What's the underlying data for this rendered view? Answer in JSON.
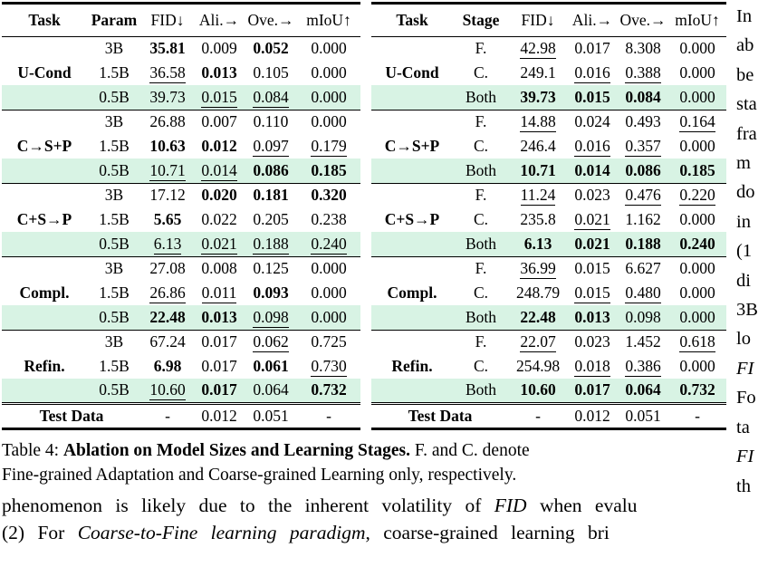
{
  "colors": {
    "highlight": "#d8f3e4",
    "text": "#000000",
    "rule": "#000000"
  },
  "caption": {
    "line1_prefix": "Table 4: ",
    "line1_bold": "Ablation on Model Sizes and Learning Stages.",
    "line1_rest": " F. and C. denote",
    "line2": "Fine-grained Adaptation and Coarse-grained Learning only, respectively."
  },
  "body_text": {
    "line1": {
      "pre": "phenomenon is likely due to the inherent volatility of ",
      "em": "FID",
      "post": " when evalu"
    },
    "line2": {
      "pre": "(2) For ",
      "em": "Coarse-to-Fine learning paradigm",
      "post": ", coarse-grained learning bri"
    }
  },
  "side_text": {
    "lines": [
      {
        "t": "In"
      },
      {
        "t": "ab"
      },
      {
        "t": "be"
      },
      {
        "t": "sta"
      },
      {
        "t": "fra"
      },
      {
        "t": "m"
      },
      {
        "t": "do"
      },
      {
        "t": "in"
      },
      {
        "t": "(1"
      },
      {
        "t": "di"
      },
      {
        "t": "3B"
      },
      {
        "t": "lo"
      },
      {
        "t": "FI",
        "italic": true
      },
      {
        "t": "Fo"
      },
      {
        "t": "ta"
      },
      {
        "t": "FI",
        "italic": true
      },
      {
        "t": "th"
      }
    ]
  },
  "tables": [
    {
      "name": "ablation-model-sizes",
      "headers": [
        {
          "t": "Task",
          "b": true
        },
        {
          "t": "Param",
          "b": true
        },
        {
          "t": "FID↓"
        },
        {
          "t": "Ali.→"
        },
        {
          "t": "Ove.→"
        },
        {
          "t": "mIoU↑"
        }
      ],
      "groups": [
        {
          "task": "U-Cond",
          "rows": [
            {
              "label": "3B",
              "hl": false,
              "cells": [
                {
                  "v": "35.81",
                  "f": "b"
                },
                {
                  "v": "0.009",
                  "f": ""
                },
                {
                  "v": "0.052",
                  "f": "b"
                },
                {
                  "v": "0.000",
                  "f": ""
                }
              ]
            },
            {
              "label": "1.5B",
              "hl": false,
              "cells": [
                {
                  "v": "36.58",
                  "f": "u"
                },
                {
                  "v": "0.013",
                  "f": "b"
                },
                {
                  "v": "0.105",
                  "f": ""
                },
                {
                  "v": "0.000",
                  "f": ""
                }
              ]
            },
            {
              "label": "0.5B",
              "hl": true,
              "cells": [
                {
                  "v": "39.73",
                  "f": ""
                },
                {
                  "v": "0.015",
                  "f": "u"
                },
                {
                  "v": "0.084",
                  "f": "u"
                },
                {
                  "v": "0.000",
                  "f": ""
                }
              ]
            }
          ]
        },
        {
          "task": "C→S+P",
          "rows": [
            {
              "label": "3B",
              "hl": false,
              "cells": [
                {
                  "v": "26.88",
                  "f": ""
                },
                {
                  "v": "0.007",
                  "f": ""
                },
                {
                  "v": "0.110",
                  "f": ""
                },
                {
                  "v": "0.000",
                  "f": ""
                }
              ]
            },
            {
              "label": "1.5B",
              "hl": false,
              "cells": [
                {
                  "v": "10.63",
                  "f": "b"
                },
                {
                  "v": "0.012",
                  "f": "b"
                },
                {
                  "v": "0.097",
                  "f": "u"
                },
                {
                  "v": "0.179",
                  "f": "u"
                }
              ]
            },
            {
              "label": "0.5B",
              "hl": true,
              "cells": [
                {
                  "v": "10.71",
                  "f": "u"
                },
                {
                  "v": "0.014",
                  "f": "u"
                },
                {
                  "v": "0.086",
                  "f": "b"
                },
                {
                  "v": "0.185",
                  "f": "b"
                }
              ]
            }
          ]
        },
        {
          "task": "C+S→P",
          "rows": [
            {
              "label": "3B",
              "hl": false,
              "cells": [
                {
                  "v": "17.12",
                  "f": ""
                },
                {
                  "v": "0.020",
                  "f": "b"
                },
                {
                  "v": "0.181",
                  "f": "b"
                },
                {
                  "v": "0.320",
                  "f": "b"
                }
              ]
            },
            {
              "label": "1.5B",
              "hl": false,
              "cells": [
                {
                  "v": "5.65",
                  "f": "b"
                },
                {
                  "v": "0.022",
                  "f": ""
                },
                {
                  "v": "0.205",
                  "f": ""
                },
                {
                  "v": "0.238",
                  "f": ""
                }
              ]
            },
            {
              "label": "0.5B",
              "hl": true,
              "cells": [
                {
                  "v": "6.13",
                  "f": "u"
                },
                {
                  "v": "0.021",
                  "f": "u"
                },
                {
                  "v": "0.188",
                  "f": "u"
                },
                {
                  "v": "0.240",
                  "f": "u"
                }
              ]
            }
          ]
        },
        {
          "task": "Compl.",
          "rows": [
            {
              "label": "3B",
              "hl": false,
              "cells": [
                {
                  "v": "27.08",
                  "f": ""
                },
                {
                  "v": "0.008",
                  "f": ""
                },
                {
                  "v": "0.125",
                  "f": ""
                },
                {
                  "v": "0.000",
                  "f": ""
                }
              ]
            },
            {
              "label": "1.5B",
              "hl": false,
              "cells": [
                {
                  "v": "26.86",
                  "f": "u"
                },
                {
                  "v": "0.011",
                  "f": "u"
                },
                {
                  "v": "0.093",
                  "f": "b"
                },
                {
                  "v": "0.000",
                  "f": ""
                }
              ]
            },
            {
              "label": "0.5B",
              "hl": true,
              "cells": [
                {
                  "v": "22.48",
                  "f": "b"
                },
                {
                  "v": "0.013",
                  "f": "b"
                },
                {
                  "v": "0.098",
                  "f": "u"
                },
                {
                  "v": "0.000",
                  "f": ""
                }
              ]
            }
          ]
        },
        {
          "task": "Refin.",
          "rows": [
            {
              "label": "3B",
              "hl": false,
              "cells": [
                {
                  "v": "67.24",
                  "f": ""
                },
                {
                  "v": "0.017",
                  "f": ""
                },
                {
                  "v": "0.062",
                  "f": "u"
                },
                {
                  "v": "0.725",
                  "f": ""
                }
              ]
            },
            {
              "label": "1.5B",
              "hl": false,
              "cells": [
                {
                  "v": "6.98",
                  "f": "b"
                },
                {
                  "v": "0.017",
                  "f": ""
                },
                {
                  "v": "0.061",
                  "f": "b"
                },
                {
                  "v": "0.730",
                  "f": "u"
                }
              ]
            },
            {
              "label": "0.5B",
              "hl": true,
              "cells": [
                {
                  "v": "10.60",
                  "f": "u"
                },
                {
                  "v": "0.017",
                  "f": "b"
                },
                {
                  "v": "0.064",
                  "f": ""
                },
                {
                  "v": "0.732",
                  "f": "b"
                }
              ]
            }
          ]
        }
      ],
      "footer": {
        "label": "Test Data",
        "cells": [
          "-",
          "0.012",
          "0.051",
          "-"
        ]
      }
    },
    {
      "name": "ablation-learning-stages",
      "headers": [
        {
          "t": "Task",
          "b": true
        },
        {
          "t": "Stage",
          "b": true
        },
        {
          "t": "FID↓"
        },
        {
          "t": "Ali.→"
        },
        {
          "t": "Ove.→"
        },
        {
          "t": "mIoU↑"
        }
      ],
      "groups": [
        {
          "task": "U-Cond",
          "rows": [
            {
              "label": "F.",
              "hl": false,
              "cells": [
                {
                  "v": "42.98",
                  "f": "u"
                },
                {
                  "v": "0.017",
                  "f": ""
                },
                {
                  "v": "8.308",
                  "f": ""
                },
                {
                  "v": "0.000",
                  "f": ""
                }
              ]
            },
            {
              "label": "C.",
              "hl": false,
              "cells": [
                {
                  "v": "249.1",
                  "f": ""
                },
                {
                  "v": "0.016",
                  "f": "u"
                },
                {
                  "v": "0.388",
                  "f": "u"
                },
                {
                  "v": "0.000",
                  "f": ""
                }
              ]
            },
            {
              "label": "Both",
              "hl": true,
              "cells": [
                {
                  "v": "39.73",
                  "f": "b"
                },
                {
                  "v": "0.015",
                  "f": "b"
                },
                {
                  "v": "0.084",
                  "f": "b"
                },
                {
                  "v": "0.000",
                  "f": ""
                }
              ]
            }
          ]
        },
        {
          "task": "C→S+P",
          "rows": [
            {
              "label": "F.",
              "hl": false,
              "cells": [
                {
                  "v": "14.88",
                  "f": "u"
                },
                {
                  "v": "0.024",
                  "f": ""
                },
                {
                  "v": "0.493",
                  "f": ""
                },
                {
                  "v": "0.164",
                  "f": "u"
                }
              ]
            },
            {
              "label": "C.",
              "hl": false,
              "cells": [
                {
                  "v": "246.4",
                  "f": ""
                },
                {
                  "v": "0.016",
                  "f": "u"
                },
                {
                  "v": "0.357",
                  "f": "u"
                },
                {
                  "v": "0.000",
                  "f": ""
                }
              ]
            },
            {
              "label": "Both",
              "hl": true,
              "cells": [
                {
                  "v": "10.71",
                  "f": "b"
                },
                {
                  "v": "0.014",
                  "f": "b"
                },
                {
                  "v": "0.086",
                  "f": "b"
                },
                {
                  "v": "0.185",
                  "f": "b"
                }
              ]
            }
          ]
        },
        {
          "task": "C+S→P",
          "rows": [
            {
              "label": "F.",
              "hl": false,
              "cells": [
                {
                  "v": "11.24",
                  "f": "u"
                },
                {
                  "v": "0.023",
                  "f": ""
                },
                {
                  "v": "0.476",
                  "f": "u"
                },
                {
                  "v": "0.220",
                  "f": "u"
                }
              ]
            },
            {
              "label": "C.",
              "hl": false,
              "cells": [
                {
                  "v": "235.8",
                  "f": ""
                },
                {
                  "v": "0.021",
                  "f": "u"
                },
                {
                  "v": "1.162",
                  "f": ""
                },
                {
                  "v": "0.000",
                  "f": ""
                }
              ]
            },
            {
              "label": "Both",
              "hl": true,
              "cells": [
                {
                  "v": "6.13",
                  "f": "b"
                },
                {
                  "v": "0.021",
                  "f": "b"
                },
                {
                  "v": "0.188",
                  "f": "b"
                },
                {
                  "v": "0.240",
                  "f": "b"
                }
              ]
            }
          ]
        },
        {
          "task": "Compl.",
          "rows": [
            {
              "label": "F.",
              "hl": false,
              "cells": [
                {
                  "v": "36.99",
                  "f": "u"
                },
                {
                  "v": "0.015",
                  "f": ""
                },
                {
                  "v": "6.627",
                  "f": ""
                },
                {
                  "v": "0.000",
                  "f": ""
                }
              ]
            },
            {
              "label": "C.",
              "hl": false,
              "cells": [
                {
                  "v": "248.79",
                  "f": ""
                },
                {
                  "v": "0.015",
                  "f": "u"
                },
                {
                  "v": "0.480",
                  "f": "u"
                },
                {
                  "v": "0.000",
                  "f": ""
                }
              ]
            },
            {
              "label": "Both",
              "hl": true,
              "cells": [
                {
                  "v": "22.48",
                  "f": "b"
                },
                {
                  "v": "0.013",
                  "f": "b"
                },
                {
                  "v": "0.098",
                  "f": ""
                },
                {
                  "v": "0.000",
                  "f": ""
                }
              ]
            }
          ]
        },
        {
          "task": "Refin.",
          "rows": [
            {
              "label": "F.",
              "hl": false,
              "cells": [
                {
                  "v": "22.07",
                  "f": "u"
                },
                {
                  "v": "0.023",
                  "f": ""
                },
                {
                  "v": "1.452",
                  "f": ""
                },
                {
                  "v": "0.618",
                  "f": "u"
                }
              ]
            },
            {
              "label": "C.",
              "hl": false,
              "cells": [
                {
                  "v": "254.98",
                  "f": ""
                },
                {
                  "v": "0.018",
                  "f": "u"
                },
                {
                  "v": "0.386",
                  "f": "u"
                },
                {
                  "v": "0.000",
                  "f": ""
                }
              ]
            },
            {
              "label": "Both",
              "hl": true,
              "cells": [
                {
                  "v": "10.60",
                  "f": "b"
                },
                {
                  "v": "0.017",
                  "f": "b"
                },
                {
                  "v": "0.064",
                  "f": "b"
                },
                {
                  "v": "0.732",
                  "f": "b"
                }
              ]
            }
          ]
        }
      ],
      "footer": {
        "label": "Test Data",
        "cells": [
          "-",
          "0.012",
          "0.051",
          "-"
        ]
      }
    }
  ]
}
